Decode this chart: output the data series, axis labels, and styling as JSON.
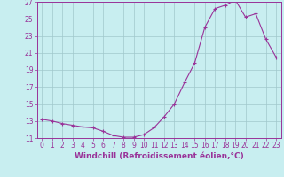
{
  "hours": [
    0,
    1,
    2,
    3,
    4,
    5,
    6,
    7,
    8,
    9,
    10,
    11,
    12,
    13,
    14,
    15,
    16,
    17,
    18,
    19,
    20,
    21,
    22,
    23
  ],
  "values": [
    13.2,
    13.0,
    12.7,
    12.5,
    12.3,
    12.2,
    11.8,
    11.3,
    11.1,
    11.1,
    11.4,
    12.2,
    13.5,
    15.0,
    17.5,
    19.8,
    24.0,
    26.2,
    26.6,
    27.2,
    25.2,
    25.6,
    22.6,
    20.5
  ],
  "line_color": "#993399",
  "marker": "+",
  "bg_color": "#c8eef0",
  "grid_color": "#a0c8cc",
  "xlabel": "Windchill (Refroidissement éolien,°C)",
  "ylim": [
    11,
    27
  ],
  "yticks": [
    11,
    13,
    15,
    17,
    19,
    21,
    23,
    25,
    27
  ],
  "xticks": [
    0,
    1,
    2,
    3,
    4,
    5,
    6,
    7,
    8,
    9,
    10,
    11,
    12,
    13,
    14,
    15,
    16,
    17,
    18,
    19,
    20,
    21,
    22,
    23
  ],
  "tick_color": "#993399",
  "label_color": "#993399",
  "axis_color": "#993399",
  "tick_fontsize": 5.5,
  "xlabel_fontsize": 6.5
}
